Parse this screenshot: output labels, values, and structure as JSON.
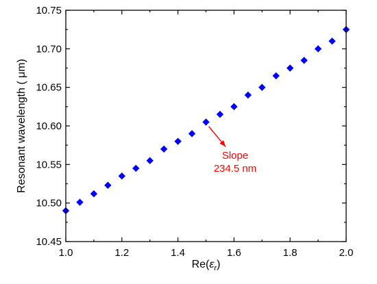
{
  "chart_data": {
    "type": "scatter",
    "xlabel": "Re(ε_r)",
    "xlabel_parts": {
      "prefix": "Re(",
      "symbol": "ε",
      "subscript": "r",
      "suffix": ")"
    },
    "ylabel": "Resonant wavelength ( μm)",
    "xlim": [
      1.0,
      2.0
    ],
    "ylim": [
      10.45,
      10.75
    ],
    "xticks": [
      "1.0",
      "1.2",
      "1.4",
      "1.6",
      "1.8",
      "2.0"
    ],
    "yticks": [
      "10.45",
      "10.50",
      "10.55",
      "10.60",
      "10.65",
      "10.70",
      "10.75"
    ],
    "grid": false,
    "marker": "diamond",
    "series": [
      {
        "color": "#0000ff",
        "x": [
          1.0,
          1.05,
          1.1,
          1.15,
          1.2,
          1.25,
          1.3,
          1.35,
          1.4,
          1.45,
          1.5,
          1.55,
          1.6,
          1.65,
          1.7,
          1.75,
          1.8,
          1.85,
          1.9,
          1.95,
          2.0
        ],
        "y": [
          10.49,
          10.501,
          10.512,
          10.523,
          10.535,
          10.545,
          10.555,
          10.57,
          10.58,
          10.59,
          10.605,
          10.615,
          10.625,
          10.64,
          10.65,
          10.665,
          10.675,
          10.685,
          10.7,
          10.71,
          10.725
        ]
      }
    ],
    "annotation": {
      "lines": [
        "Slope",
        "234.5 nm"
      ],
      "color": "#ff0000",
      "arrow_from": [
        1.57,
        10.573
      ],
      "arrow_to": [
        1.5,
        10.602
      ]
    }
  }
}
